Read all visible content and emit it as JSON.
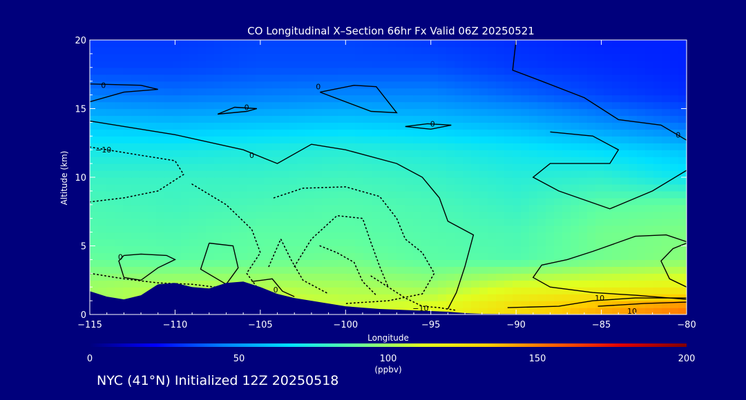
{
  "chart_data": {
    "type": "heatmap",
    "title": "CO Longitudinal X–Section 66hr  Fx Valid 06Z 20250521",
    "xlabel": "Longitude",
    "ylabel": "Altitude (km)",
    "xlim": [
      -115,
      -80
    ],
    "ylim": [
      0,
      20
    ],
    "x_ticks": [
      -115,
      -110,
      -105,
      -100,
      -95,
      -90,
      -85,
      -80
    ],
    "x_tick_labels": [
      "−115",
      "−110",
      "−105",
      "−100",
      "−95",
      "−90",
      "−85",
      "−80"
    ],
    "y_ticks": [
      0,
      5,
      10,
      15,
      20
    ],
    "y_tick_labels": [
      "0",
      "5",
      "10",
      "15",
      "20"
    ],
    "colorbar": {
      "min": 0,
      "max": 200,
      "ticks": [
        0,
        50,
        100,
        150,
        200
      ],
      "tick_labels": [
        "0",
        "50",
        "100",
        "150",
        "200"
      ],
      "units": "(ppbv)",
      "colors": [
        "#00007c",
        "#0000ff",
        "#0080ff",
        "#00e0ff",
        "#60ffa0",
        "#e0ff20",
        "#ffd000",
        "#ff6000",
        "#e00000",
        "#800000"
      ]
    },
    "terrain_profile": [
      {
        "lon": -115,
        "alt": 1.7
      },
      {
        "lon": -114,
        "alt": 1.3
      },
      {
        "lon": -113,
        "alt": 1.1
      },
      {
        "lon": -112,
        "alt": 1.4
      },
      {
        "lon": -111,
        "alt": 2.2
      },
      {
        "lon": -110,
        "alt": 2.3
      },
      {
        "lon": -109,
        "alt": 2.0
      },
      {
        "lon": -108,
        "alt": 1.9
      },
      {
        "lon": -107,
        "alt": 2.3
      },
      {
        "lon": -106,
        "alt": 2.4
      },
      {
        "lon": -105,
        "alt": 2.0
      },
      {
        "lon": -104,
        "alt": 1.5
      },
      {
        "lon": -103,
        "alt": 1.2
      },
      {
        "lon": -102,
        "alt": 1.0
      },
      {
        "lon": -101,
        "alt": 0.8
      },
      {
        "lon": -100,
        "alt": 0.6
      },
      {
        "lon": -99,
        "alt": 0.5
      },
      {
        "lon": -98,
        "alt": 0.4
      },
      {
        "lon": -97,
        "alt": 0.35
      },
      {
        "lon": -96,
        "alt": 0.3
      },
      {
        "lon": -95,
        "alt": 0.25
      },
      {
        "lon": -94,
        "alt": 0.2
      },
      {
        "lon": -93,
        "alt": 0.1
      },
      {
        "lon": -92,
        "alt": 0.05
      },
      {
        "lon": -80,
        "alt": 0.0
      }
    ],
    "co_field": {
      "lons": [
        -115,
        -110,
        -105,
        -100,
        -95,
        -90,
        -85,
        -80
      ],
      "alts": [
        0.5,
        2,
        4,
        6,
        8,
        10,
        12,
        14,
        16,
        18,
        20
      ],
      "values": [
        [
          98,
          110,
          112,
          108,
          112,
          128,
          140,
          150
        ],
        [
          100,
          104,
          104,
          102,
          100,
          112,
          115,
          118
        ],
        [
          90,
          88,
          90,
          92,
          88,
          86,
          92,
          96
        ],
        [
          86,
          85,
          88,
          88,
          86,
          84,
          92,
          94
        ],
        [
          84,
          82,
          84,
          86,
          84,
          80,
          88,
          90
        ],
        [
          80,
          80,
          80,
          82,
          80,
          76,
          78,
          70
        ],
        [
          72,
          72,
          74,
          76,
          74,
          70,
          66,
          60
        ],
        [
          60,
          58,
          60,
          62,
          60,
          56,
          48,
          40
        ],
        [
          44,
          42,
          44,
          46,
          46,
          40,
          34,
          30
        ],
        [
          34,
          34,
          36,
          36,
          36,
          32,
          30,
          28
        ],
        [
          32,
          32,
          34,
          34,
          32,
          30,
          28,
          28
        ]
      ]
    },
    "contours": [
      {
        "level": 0,
        "style": "solid",
        "label": "0",
        "label_pos": [
          -114.2,
          16.7
        ],
        "points": [
          [
            -115,
            16.8
          ],
          [
            -112,
            16.7
          ],
          [
            -111,
            16.4
          ],
          [
            -113,
            16.2
          ],
          [
            -115,
            15.5
          ]
        ]
      },
      {
        "level": 0,
        "style": "solid",
        "label": "0",
        "label_pos": [
          -105.8,
          15.1
        ],
        "points": [
          [
            -107.5,
            14.6
          ],
          [
            -106.5,
            15.1
          ],
          [
            -105.2,
            15.0
          ],
          [
            -105.8,
            14.8
          ],
          [
            -107.5,
            14.6
          ]
        ]
      },
      {
        "level": 0,
        "style": "solid",
        "label": "0",
        "label_pos": [
          -101.6,
          16.6
        ],
        "points": [
          [
            -101.5,
            16.2
          ],
          [
            -99.5,
            16.7
          ],
          [
            -98.2,
            16.6
          ],
          [
            -97,
            14.7
          ],
          [
            -98.5,
            14.8
          ],
          [
            -101.5,
            16.2
          ]
        ]
      },
      {
        "level": 0,
        "style": "solid",
        "label": "0",
        "label_pos": [
          -94.9,
          13.9
        ],
        "points": [
          [
            -96.5,
            13.7
          ],
          [
            -95.2,
            13.9
          ],
          [
            -93.8,
            13.8
          ],
          [
            -95,
            13.5
          ],
          [
            -96.5,
            13.7
          ]
        ]
      },
      {
        "level": 0,
        "style": "solid",
        "label": "0",
        "label_pos": [
          -80.5,
          13.1
        ],
        "points": [
          [
            -90,
            20
          ],
          [
            -90.2,
            17.8
          ],
          [
            -88.5,
            17.0
          ],
          [
            -86,
            15.8
          ],
          [
            -84,
            14.2
          ],
          [
            -81.5,
            13.8
          ],
          [
            -80,
            12.7
          ]
        ]
      },
      {
        "level": 0,
        "style": "solid",
        "label": "0",
        "label_pos": [
          -105.5,
          11.6
        ],
        "points": [
          [
            -115,
            14.1
          ],
          [
            -110,
            13.1
          ],
          [
            -106,
            12.0
          ],
          [
            -104,
            11.0
          ],
          [
            -102,
            12.4
          ],
          [
            -100,
            12.0
          ],
          [
            -97,
            11.0
          ],
          [
            -95.5,
            10.0
          ],
          [
            -94.5,
            8.5
          ],
          [
            -94,
            6.8
          ],
          [
            -92.5,
            5.8
          ],
          [
            -93,
            3.5
          ],
          [
            -93.5,
            1.6
          ],
          [
            -94,
            0.4
          ]
        ]
      },
      {
        "level": 0,
        "style": "solid",
        "label": "",
        "label_pos": [
          0,
          0
        ],
        "points": [
          [
            -88,
            13.3
          ],
          [
            -85.5,
            13.0
          ],
          [
            -84,
            12.0
          ],
          [
            -84.5,
            11.0
          ],
          [
            -88,
            11.0
          ],
          [
            -89,
            10.0
          ],
          [
            -87.5,
            9.0
          ],
          [
            -84.5,
            7.7
          ],
          [
            -82,
            9.0
          ],
          [
            -80,
            10.5
          ]
        ]
      },
      {
        "level": 0,
        "style": "solid",
        "label": "0",
        "label_pos": [
          -113.2,
          4.2
        ],
        "points": [
          [
            -113,
            4.3
          ],
          [
            -112,
            4.4
          ],
          [
            -110.5,
            4.3
          ],
          [
            -110,
            4.0
          ],
          [
            -111,
            3.4
          ],
          [
            -112,
            2.5
          ],
          [
            -113,
            2.7
          ],
          [
            -113.3,
            3.9
          ],
          [
            -113,
            4.3
          ]
        ]
      },
      {
        "level": 0,
        "style": "solid",
        "label": "",
        "label_pos": [
          0,
          0
        ],
        "points": [
          [
            -108,
            5.2
          ],
          [
            -106.6,
            5.0
          ],
          [
            -106.3,
            3.4
          ],
          [
            -107,
            2.2
          ],
          [
            -108.5,
            3.3
          ],
          [
            -108,
            5.2
          ]
        ]
      },
      {
        "level": 0,
        "style": "solid",
        "label": "0",
        "label_pos": [
          -104.1,
          1.8
        ],
        "points": [
          [
            -105.5,
            2.4
          ],
          [
            -104.3,
            2.6
          ],
          [
            -103.7,
            1.7
          ],
          [
            -103,
            1.3
          ]
        ]
      },
      {
        "level": 0,
        "style": "solid",
        "label": "",
        "label_pos": [
          0,
          0
        ],
        "points": [
          [
            -80,
            5.3
          ],
          [
            -81.2,
            5.8
          ],
          [
            -83,
            5.7
          ],
          [
            -85.5,
            4.6
          ],
          [
            -87,
            4.0
          ],
          [
            -88.5,
            3.6
          ],
          [
            -89,
            2.7
          ],
          [
            -88,
            2.0
          ],
          [
            -85.5,
            1.6
          ],
          [
            -83,
            1.4
          ],
          [
            -80,
            1.1
          ]
        ]
      },
      {
        "level": 0,
        "style": "solid",
        "label": "",
        "label_pos": [
          0,
          0
        ],
        "points": [
          [
            -80,
            2.0
          ],
          [
            -81,
            2.6
          ],
          [
            -81.5,
            3.9
          ],
          [
            -80.8,
            4.8
          ],
          [
            -80,
            5.2
          ]
        ]
      },
      {
        "level": 10,
        "style": "solid",
        "label": "10",
        "label_pos": [
          -85.1,
          1.2
        ],
        "points": [
          [
            -90.5,
            0.5
          ],
          [
            -87.5,
            0.6
          ],
          [
            -85.5,
            1.0
          ],
          [
            -83,
            1.2
          ],
          [
            -80,
            1.2
          ]
        ]
      },
      {
        "level": 10,
        "style": "solid",
        "label": "10",
        "label_pos": [
          -83.2,
          0.25
        ],
        "points": [
          [
            -85.2,
            0.6
          ],
          [
            -82.5,
            0.8
          ],
          [
            -80,
            0.9
          ]
        ]
      },
      {
        "level": -10,
        "style": "dotted",
        "label": "−10",
        "label_pos": [
          -114.2,
          12.0
        ],
        "points": [
          [
            -115,
            12.2
          ],
          [
            -112,
            11.6
          ],
          [
            -110,
            11.2
          ],
          [
            -109.5,
            10.2
          ],
          [
            -111,
            9.0
          ],
          [
            -113,
            8.5
          ],
          [
            -115,
            8.2
          ]
        ]
      },
      {
        "level": -10,
        "style": "dotted",
        "label": "",
        "label_pos": [
          0,
          0
        ],
        "points": [
          [
            -109,
            9.5
          ],
          [
            -107,
            8.0
          ],
          [
            -105.5,
            6.2
          ],
          [
            -105,
            4.5
          ],
          [
            -105.8,
            3.0
          ],
          [
            -105.2,
            2.0
          ]
        ]
      },
      {
        "level": -10,
        "style": "dotted",
        "label": "",
        "label_pos": [
          0,
          0
        ],
        "points": [
          [
            -104.2,
            8.5
          ],
          [
            -102.5,
            9.2
          ],
          [
            -100,
            9.3
          ],
          [
            -98,
            8.6
          ],
          [
            -97,
            7.0
          ],
          [
            -96.5,
            5.5
          ],
          [
            -95.5,
            4.5
          ],
          [
            -94.8,
            3.0
          ],
          [
            -95.5,
            1.5
          ],
          [
            -97.5,
            1.0
          ],
          [
            -100,
            0.8
          ]
        ]
      },
      {
        "level": -10,
        "style": "dotted",
        "label": "",
        "label_pos": [
          0,
          0
        ],
        "points": [
          [
            -103,
            3.5
          ],
          [
            -102,
            5.5
          ],
          [
            -100.5,
            7.2
          ],
          [
            -99,
            7.0
          ],
          [
            -98.5,
            5.2
          ],
          [
            -98,
            3.5
          ],
          [
            -97.5,
            2.0
          ]
        ]
      },
      {
        "level": -10,
        "style": "dotted",
        "label": "",
        "label_pos": [
          0,
          0
        ],
        "points": [
          [
            -104.5,
            3.5
          ],
          [
            -103.8,
            5.5
          ],
          [
            -103.2,
            4.0
          ],
          [
            -102.5,
            2.5
          ],
          [
            -101,
            1.5
          ]
        ]
      },
      {
        "level": -10,
        "style": "dotted",
        "label": "",
        "label_pos": [
          0,
          0
        ],
        "points": [
          [
            -101.5,
            5.0
          ],
          [
            -100.5,
            4.5
          ],
          [
            -99.5,
            3.8
          ],
          [
            -99,
            2.4
          ],
          [
            -98.2,
            1.4
          ]
        ]
      },
      {
        "level": -10,
        "style": "dotted",
        "label": "−10",
        "label_pos": [
          -95.6,
          0.45
        ],
        "points": [
          [
            -98.5,
            2.8
          ],
          [
            -97.5,
            2.0
          ],
          [
            -96.5,
            1.2
          ],
          [
            -95.5,
            0.6
          ],
          [
            -94.5,
            0.5
          ],
          [
            -93.5,
            0.3
          ]
        ]
      },
      {
        "level": -10,
        "style": "dotted",
        "label": "",
        "label_pos": [
          0,
          0
        ],
        "points": [
          [
            -115,
            3.0
          ],
          [
            -113,
            2.6
          ],
          [
            -111,
            2.3
          ],
          [
            -109,
            2.2
          ],
          [
            -107,
            1.9
          ]
        ]
      }
    ]
  },
  "bottom_title": "NYC (41°N) Initialized 12Z 20250518"
}
